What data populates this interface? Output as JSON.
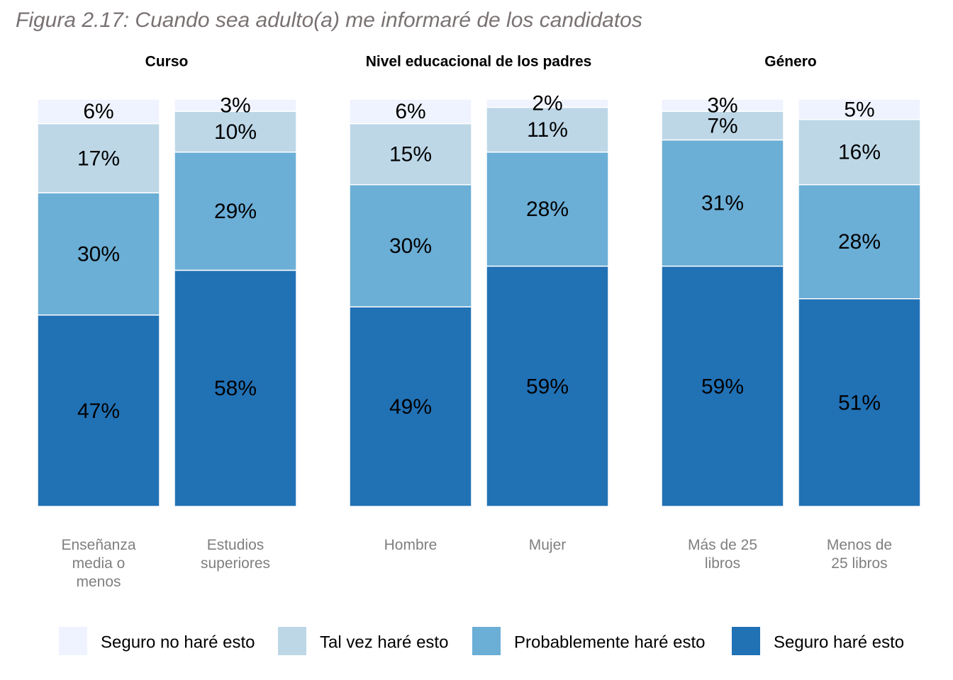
{
  "chart_data": {
    "type": "stacked_bar",
    "title": "Figura 2.17: Cuando sea adulto(a) me informaré de los candidatos",
    "ylim": [
      0,
      100
    ],
    "series": [
      {
        "name": "Seguro no haré esto",
        "color": "#eff3ff"
      },
      {
        "name": "Tal vez haré esto",
        "color": "#bdd7e7"
      },
      {
        "name": "Probablemente haré esto",
        "color": "#6baed6"
      },
      {
        "name": "Seguro haré esto",
        "color": "#2171b5"
      }
    ],
    "panels": [
      {
        "title": "Curso",
        "categories": [
          "Enseñanza media o menos",
          "Estudios superiores"
        ],
        "series": [
          {
            "values": [
              6,
              3
            ],
            "value_labels": [
              "6%",
              "3%"
            ]
          },
          {
            "values": [
              17,
              10
            ],
            "value_labels": [
              "17%",
              "10%"
            ]
          },
          {
            "values": [
              30,
              29
            ],
            "value_labels": [
              "30%",
              "29%"
            ]
          },
          {
            "values": [
              47,
              58
            ],
            "value_labels": [
              "47%",
              "58%"
            ]
          }
        ]
      },
      {
        "title": "Nivel educacional de los padres",
        "categories": [
          "Hombre",
          "Mujer"
        ],
        "series": [
          {
            "values": [
              6,
              2
            ],
            "value_labels": [
              "6%",
              "2%"
            ]
          },
          {
            "values": [
              15,
              11
            ],
            "value_labels": [
              "15%",
              "11%"
            ]
          },
          {
            "values": [
              30,
              28
            ],
            "value_labels": [
              "30%",
              "28%"
            ]
          },
          {
            "values": [
              49,
              59
            ],
            "value_labels": [
              "49%",
              "59%"
            ]
          }
        ]
      },
      {
        "title": "Género",
        "categories": [
          "Más de 25 libros",
          "Menos de 25 libros"
        ],
        "series": [
          {
            "values": [
              3,
              5
            ],
            "value_labels": [
              "3%",
              "5%"
            ]
          },
          {
            "values": [
              7,
              16
            ],
            "value_labels": [
              "7%",
              "16%"
            ]
          },
          {
            "values": [
              31,
              28
            ],
            "value_labels": [
              "31%",
              "28%"
            ]
          },
          {
            "values": [
              59,
              51
            ],
            "value_labels": [
              "59%",
              "51%"
            ]
          }
        ]
      }
    ]
  }
}
